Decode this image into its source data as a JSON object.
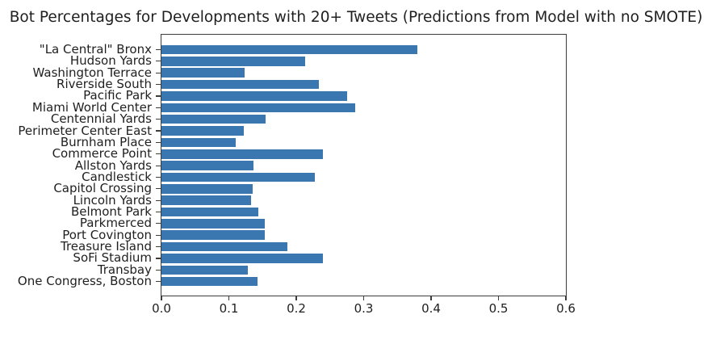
{
  "chart_data": {
    "type": "bar",
    "orientation": "horizontal",
    "title": "Bot Percentages for Developments with 20+ Tweets (Predictions from Model with no SMOTE)",
    "categories": [
      "\"La Central\" Bronx",
      "Hudson Yards",
      "Washington Terrace",
      "Riverside South",
      "Pacific Park",
      "Miami World Center",
      "Centennial Yards",
      "Perimeter Center East",
      "Burnham Place",
      "Commerce Point",
      "Allston Yards",
      "Candlestick",
      "Capitol Crossing",
      "Lincoln Yards",
      "Belmont Park",
      "Parkmerced",
      "Port Covington",
      "Treasure Island",
      "SoFi Stadium",
      "Transbay",
      "One Congress, Boston"
    ],
    "values": [
      0.38,
      0.213,
      0.123,
      0.233,
      0.276,
      0.287,
      0.154,
      0.122,
      0.11,
      0.24,
      0.137,
      0.227,
      0.135,
      0.133,
      0.144,
      0.153,
      0.153,
      0.187,
      0.24,
      0.128,
      0.142
    ],
    "xlim": [
      0.0,
      0.6
    ],
    "xticks": [
      0.0,
      0.1,
      0.2,
      0.3,
      0.4,
      0.5,
      0.6
    ],
    "xtick_labels": [
      "0.0",
      "0.1",
      "0.2",
      "0.3",
      "0.4",
      "0.5",
      "0.6"
    ],
    "bar_color": "#3a76b0",
    "spine_color": "#3c3c3c",
    "grid": false,
    "legend": null
  }
}
